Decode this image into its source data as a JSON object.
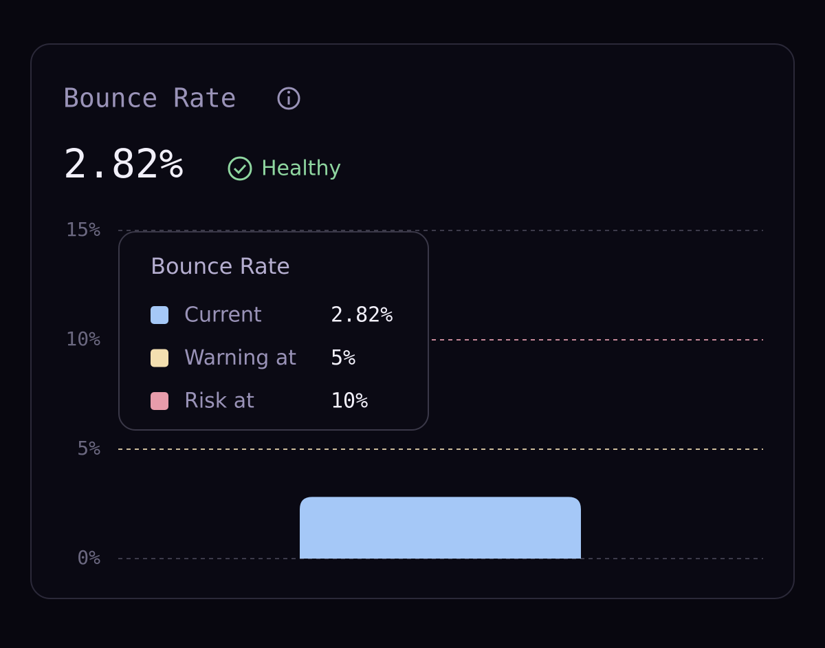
{
  "chart_data": {
    "type": "bar",
    "title": "Bounce Rate",
    "values": [
      2.82
    ],
    "value_labels": [
      "2.82%"
    ],
    "color": "#a5c8f7",
    "status": "Healthy",
    "ylim": [
      0,
      15
    ],
    "yticks": [
      {
        "value": 0,
        "label": "0%"
      },
      {
        "value": 5,
        "label": "5%"
      },
      {
        "value": 10,
        "label": "10%"
      },
      {
        "value": 15,
        "label": "15%"
      }
    ],
    "grid": true,
    "thresholds": [
      {
        "name": "Warning at",
        "value": 5,
        "label": "5%",
        "color": "#f3dfb0"
      },
      {
        "name": "Risk at",
        "value": 10,
        "label": "10%",
        "color": "#e89cab"
      }
    ],
    "tooltip": {
      "title": "Bounce Rate",
      "series_name": "Current"
    }
  }
}
